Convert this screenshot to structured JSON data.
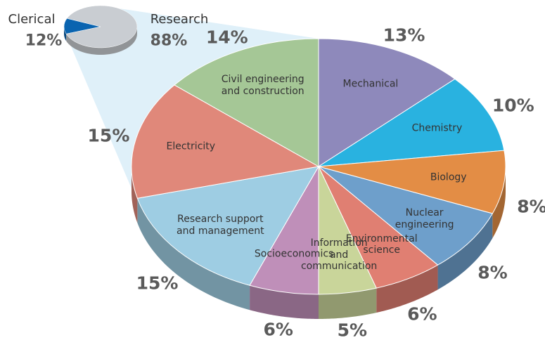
{
  "chart_data": [
    {
      "type": "pie",
      "categories": [
        "Clerical",
        "Research"
      ],
      "values": [
        12,
        88
      ],
      "value_labels": [
        "12%",
        "88%"
      ],
      "colors": [
        "#0a64b0",
        "#c9cdd2"
      ]
    },
    {
      "type": "pie",
      "categories": [
        "Mechanical",
        "Chemistry",
        "Biology",
        "Nuclear\nengineering",
        "Environmental\nscience",
        "Information\nand\ncommunication",
        "Socioeconomics",
        "Research support\nand management",
        "Electricity",
        "Civil engineering\nand construction"
      ],
      "values": [
        13,
        10,
        8,
        8,
        6,
        5,
        6,
        15,
        15,
        14
      ],
      "value_labels": [
        "13%",
        "10%",
        "8%",
        "8%",
        "6%",
        "5%",
        "6%",
        "15%",
        "15%",
        "14%"
      ],
      "colors": [
        "#8e89bb",
        "#29b2e0",
        "#e38d45",
        "#6e9fcb",
        "#e07f72",
        "#c9d59a",
        "#bf8fb9",
        "#9ecde3",
        "#e0887a",
        "#a5c796"
      ]
    }
  ]
}
